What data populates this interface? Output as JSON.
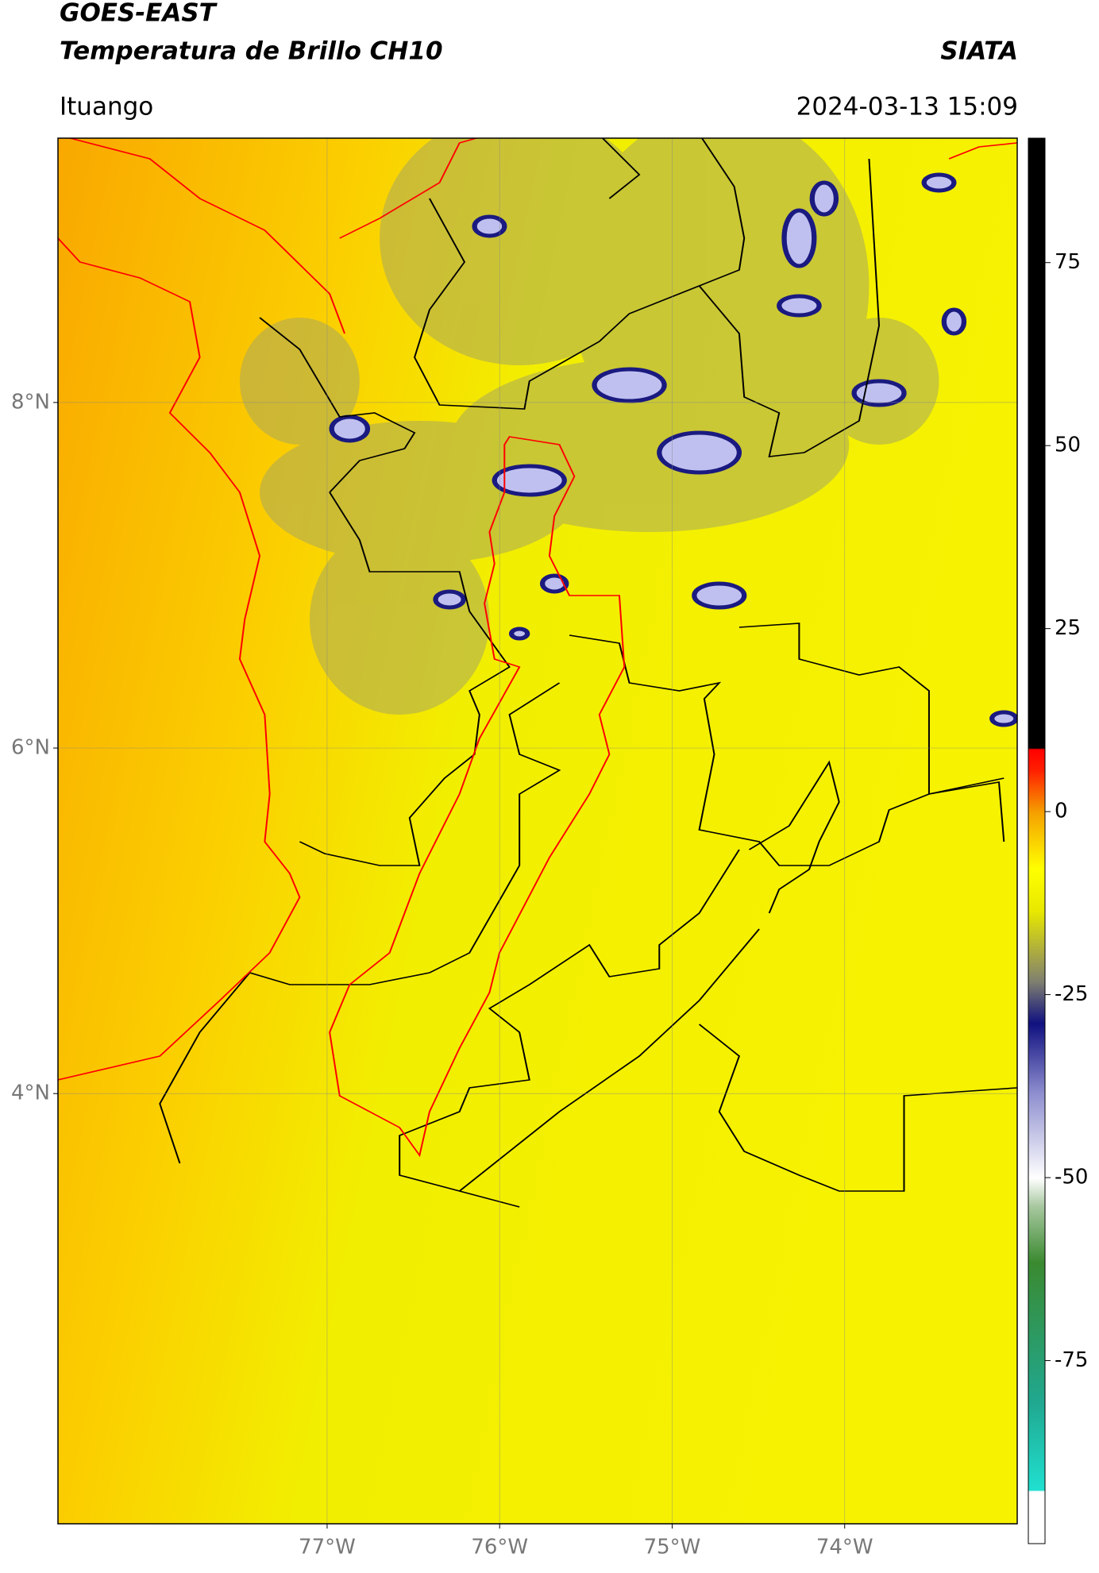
{
  "header": {
    "title": "GOES-EAST",
    "subtitle": "Temperatura de Brillo CH10",
    "source": "SIATA",
    "location": "Ituango",
    "datetime": "2024-03-13 15:09"
  },
  "map": {
    "xlim": [
      -78.56,
      -73.0
    ],
    "ylim": [
      1.51,
      9.53
    ],
    "xticks": [
      {
        "value": -77,
        "label": "77°W"
      },
      {
        "value": -76,
        "label": "76°W"
      },
      {
        "value": -75,
        "label": "75°W"
      },
      {
        "value": -74,
        "label": "74°W"
      }
    ],
    "yticks": [
      {
        "value": 8,
        "label": "8°N"
      },
      {
        "value": 6,
        "label": "6°N"
      },
      {
        "value": 4,
        "label": "4°N"
      }
    ]
  },
  "colorbar": {
    "lim": [
      -100,
      92
    ],
    "ticks": [
      75,
      50,
      25,
      0,
      -25,
      -50,
      -75
    ]
  }
}
